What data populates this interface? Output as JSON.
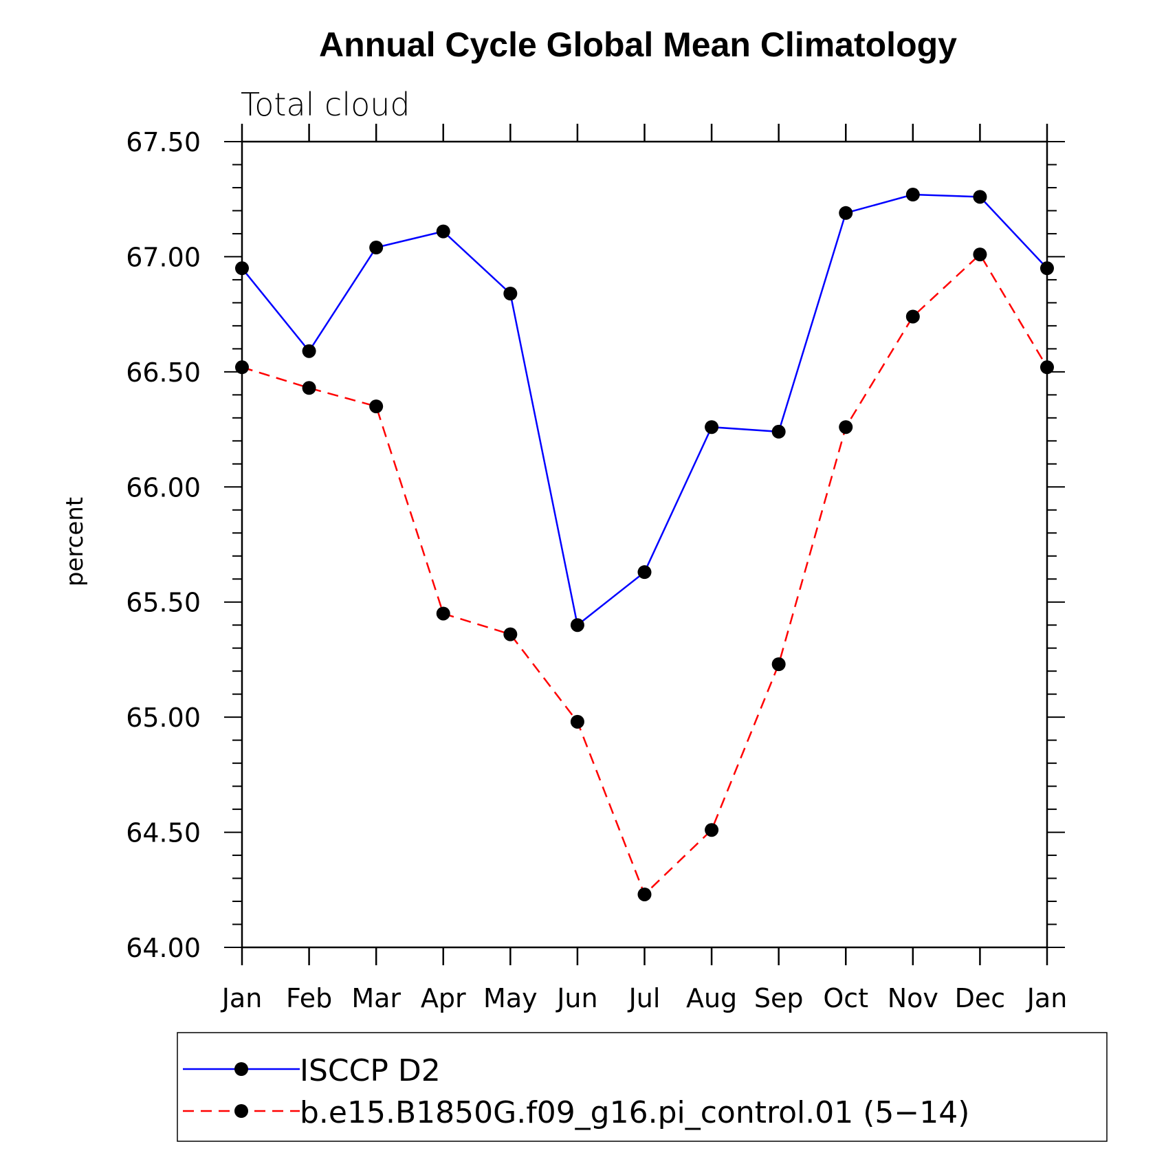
{
  "chart_data": {
    "type": "line",
    "title": "Annual Cycle Global Mean Climatology",
    "subtitle": "Total cloud",
    "xlabel": "",
    "ylabel": "percent",
    "categories": [
      "Jan",
      "Feb",
      "Mar",
      "Apr",
      "May",
      "Jun",
      "Jul",
      "Aug",
      "Sep",
      "Oct",
      "Nov",
      "Dec",
      "Jan"
    ],
    "y_tick_labels": [
      "64.00",
      "64.50",
      "65.00",
      "65.50",
      "66.00",
      "66.50",
      "67.00",
      "67.50"
    ],
    "y_ticks": [
      64.0,
      64.5,
      65.0,
      65.5,
      66.0,
      66.5,
      67.0,
      67.5
    ],
    "ylim": [
      64.0,
      67.5
    ],
    "grid": false,
    "legend_position": "bottom",
    "series": [
      {
        "name": "ISCCP D2",
        "color": "#0000ff",
        "dash": "solid",
        "values": [
          66.95,
          66.59,
          67.04,
          67.11,
          66.84,
          65.4,
          65.63,
          66.26,
          66.24,
          67.19,
          67.27,
          67.26,
          66.95
        ]
      },
      {
        "name": "b.e15.B1850G.f09_g16.pi_control.01 (5−14)",
        "color": "#ff0000",
        "dash": "dashed",
        "values": [
          66.52,
          66.43,
          66.35,
          65.45,
          65.36,
          64.98,
          64.23,
          64.51,
          65.23,
          66.26,
          66.74,
          67.01,
          66.52
        ]
      }
    ]
  }
}
